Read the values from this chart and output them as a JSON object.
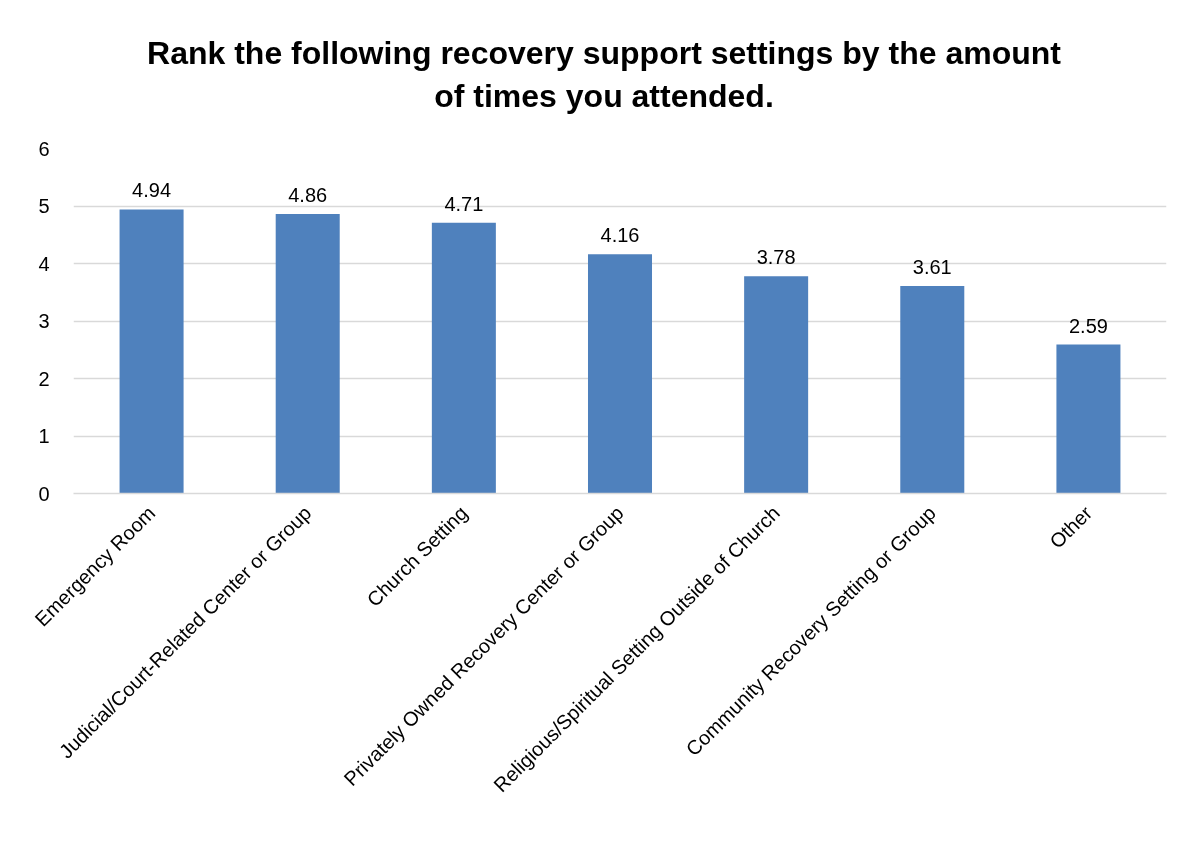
{
  "chart_data": {
    "type": "bar",
    "title": "Rank the following recovery support settings by the amount of times you attended.",
    "categories": [
      "Emergency Room",
      "Judicial/Court-Related Center or Group",
      "Church Setting",
      "Privately Owned Recovery Center or Group",
      "Religious/Spiritual Setting Outside of Church",
      "Community Recovery Setting or Group",
      "Other"
    ],
    "values": [
      4.94,
      4.86,
      4.71,
      4.16,
      3.78,
      3.61,
      2.59
    ],
    "color": "#4f81bd",
    "ylim": [
      0,
      6
    ],
    "yticks": [
      0,
      1,
      2,
      3,
      4,
      5,
      6
    ],
    "grid": "y",
    "data_labels": true
  }
}
